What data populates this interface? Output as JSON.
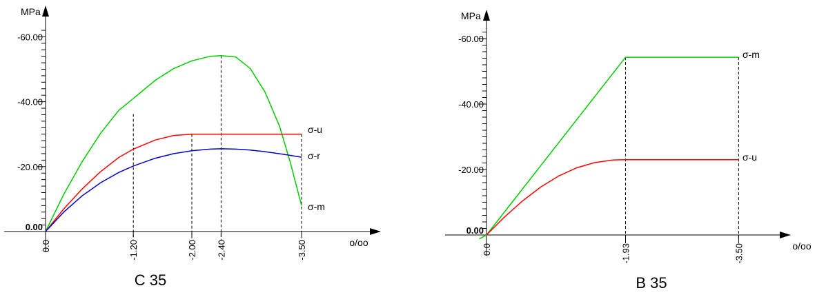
{
  "chart_data": [
    {
      "type": "line",
      "caption": "C 35",
      "y_unit": "MPa",
      "x_unit": "o/oo",
      "yticks": [
        "-60.00",
        "-40.00",
        "-20.00",
        "0.00"
      ],
      "xticks": [
        "0.0",
        "-1.20",
        "-2.00",
        "-2.40",
        "-3.50"
      ],
      "ylim": [
        0,
        -62
      ],
      "xlim": [
        0,
        -4.2
      ],
      "series": [
        {
          "name": "σ-m",
          "color": "#00cc00",
          "x": [
            0,
            -0.25,
            -0.5,
            -0.75,
            -1.0,
            -1.2,
            -1.5,
            -1.75,
            -2.0,
            -2.25,
            -2.4,
            -2.6,
            -2.8,
            -3.0,
            -3.2,
            -3.35,
            -3.5
          ],
          "y": [
            0,
            -11.5,
            -21.5,
            -30.2,
            -37.3,
            -41.0,
            -46.6,
            -50.2,
            -52.6,
            -54.0,
            -54.2,
            -53.8,
            -50.2,
            -43.0,
            -32.4,
            -21.0,
            -8.0
          ]
        },
        {
          "name": "σ-u",
          "color": "#ff0000",
          "x": [
            0,
            -0.25,
            -0.5,
            -0.75,
            -1.0,
            -1.2,
            -1.5,
            -1.75,
            -2.0,
            -2.4,
            -3.0,
            -3.5
          ],
          "y": [
            0,
            -7.0,
            -13.1,
            -18.4,
            -22.8,
            -25.4,
            -28.2,
            -29.6,
            -30.0,
            -30.0,
            -30.0,
            -30.0
          ]
        },
        {
          "name": "σ-r",
          "color": "#0000cc",
          "x": [
            0,
            -0.25,
            -0.5,
            -0.75,
            -1.0,
            -1.2,
            -1.5,
            -1.75,
            -2.0,
            -2.25,
            -2.4,
            -2.6,
            -2.8,
            -3.0,
            -3.25,
            -3.5
          ],
          "y": [
            0,
            -6.0,
            -11.0,
            -15.0,
            -18.2,
            -20.2,
            -22.6,
            -24.0,
            -24.9,
            -25.4,
            -25.5,
            -25.4,
            -25.1,
            -24.6,
            -23.8,
            -22.9
          ]
        }
      ],
      "markers": [
        {
          "x": -1.2,
          "y": -36.2
        },
        {
          "x": -2.0,
          "y": -30.0
        },
        {
          "x": -2.4,
          "y": -54.2
        },
        {
          "x": -3.5,
          "y": -30.0
        }
      ]
    },
    {
      "type": "line",
      "caption": "B 35",
      "y_unit": "MPa",
      "x_unit": "o/oo",
      "yticks": [
        "-60.00",
        "-40.00",
        "-20.00",
        "0.00"
      ],
      "xticks": [
        "0.0",
        "-1.93",
        "-3.50"
      ],
      "ylim": [
        0,
        -62
      ],
      "xlim": [
        0,
        -4.0
      ],
      "series": [
        {
          "name": "σ-m",
          "color": "#00cc00",
          "x": [
            0.1,
            0,
            -1.93,
            -3.5
          ],
          "y": [
            1.2,
            0,
            -54.3,
            -54.3
          ]
        },
        {
          "name": "σ-u",
          "color": "#ff0000",
          "x": [
            0,
            -0.25,
            -0.5,
            -0.75,
            -1.0,
            -1.25,
            -1.5,
            -1.75,
            -1.93,
            -3.5
          ],
          "y": [
            0,
            -5.5,
            -10.4,
            -14.6,
            -18.0,
            -20.5,
            -22.1,
            -22.9,
            -23.0,
            -23.0
          ]
        }
      ],
      "markers": [
        {
          "x": -1.93,
          "y": -54.3
        },
        {
          "x": -3.5,
          "y": -54.3
        }
      ]
    }
  ]
}
